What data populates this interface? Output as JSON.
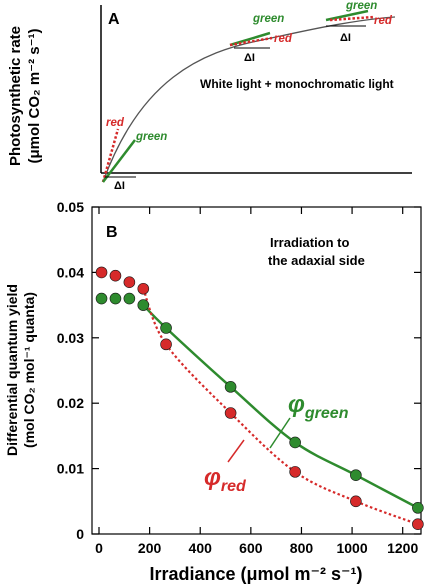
{
  "colors": {
    "green": "#2e8b2e",
    "red": "#d62a2a",
    "curve": "#555555",
    "axis": "#000000"
  },
  "chart_data": [
    {
      "panel": "A",
      "type": "line",
      "ylabel_line1": "Photosynthetic rate",
      "ylabel_line2": "(μmol CO₂ m⁻² s⁻¹)",
      "annotation": "White light + monochromatic light",
      "tangent_labels": {
        "red": "red",
        "green": "green",
        "delta": "ΔI"
      }
    },
    {
      "panel": "B",
      "type": "scatter",
      "xlabel": "Irradiance (μmol m⁻² s⁻¹)",
      "ylabel_line1": "Differential quantum yield",
      "ylabel_line2": "(mol CO₂ mol⁻¹ quanta)",
      "xlim": [
        0,
        1300
      ],
      "ylim": [
        0,
        0.05
      ],
      "xticks": [
        0,
        200,
        400,
        600,
        800,
        1000,
        1200
      ],
      "yticks": [
        0,
        0.01,
        0.02,
        0.03,
        0.04,
        0.05
      ],
      "ytick_labels": [
        "0",
        "0.01",
        "0.02",
        "0.03",
        "0.04",
        "0.05"
      ],
      "annotation_line1": "Irradiation to",
      "annotation_line2": "the adaxial side",
      "series": [
        {
          "name_symbol": "φ",
          "name_sub": "green",
          "color_key": "green",
          "x": [
            10,
            65,
            120,
            175,
            265,
            520,
            775,
            1015,
            1260
          ],
          "y": [
            0.036,
            0.036,
            0.036,
            0.035,
            0.0315,
            0.0225,
            0.014,
            0.009,
            0.004
          ]
        },
        {
          "name_symbol": "φ",
          "name_sub": "red",
          "color_key": "red",
          "x": [
            10,
            65,
            120,
            175,
            265,
            520,
            775,
            1015,
            1260
          ],
          "y": [
            0.04,
            0.0395,
            0.0385,
            0.0375,
            0.029,
            0.0185,
            0.0095,
            0.005,
            0.0015
          ]
        }
      ]
    }
  ]
}
